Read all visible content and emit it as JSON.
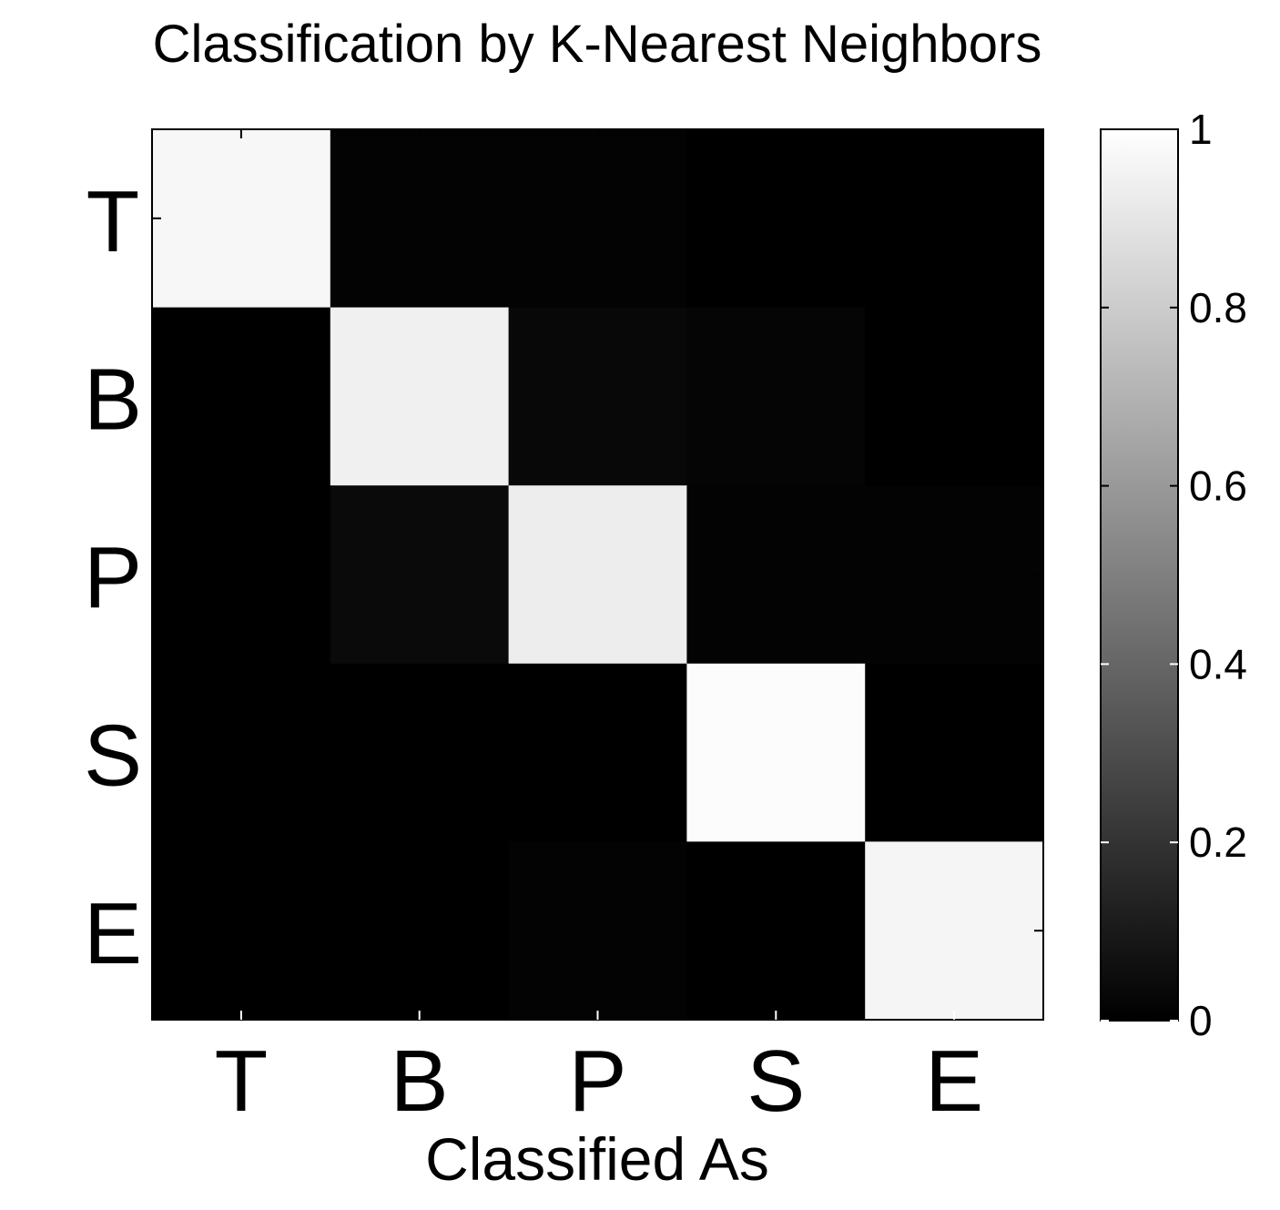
{
  "chart_data": {
    "type": "heatmap",
    "title": "Classification by K-Nearest Neighbors",
    "xlabel": "Classified As",
    "ylabel": "",
    "x_categories": [
      "T",
      "B",
      "P",
      "S",
      "E"
    ],
    "y_categories": [
      "T",
      "B",
      "P",
      "S",
      "E"
    ],
    "values": [
      [
        0.97,
        0.01,
        0.01,
        0.0,
        0.0
      ],
      [
        0.0,
        0.94,
        0.03,
        0.02,
        0.0
      ],
      [
        0.0,
        0.04,
        0.93,
        0.01,
        0.01
      ],
      [
        0.0,
        0.0,
        0.0,
        0.99,
        0.0
      ],
      [
        0.0,
        0.0,
        0.01,
        0.0,
        0.96
      ]
    ],
    "colormap": "gray",
    "clim": [
      0,
      1
    ],
    "colorbar": {
      "ticks": [
        0,
        0.2,
        0.4,
        0.6,
        0.8,
        1
      ],
      "tick_labels": [
        "0",
        "0.2",
        "0.4",
        "0.6",
        "0.8",
        "1"
      ]
    },
    "grid": false,
    "colors": {
      "low": "#000000",
      "high": "#ffffff",
      "axis": "#000000"
    }
  }
}
